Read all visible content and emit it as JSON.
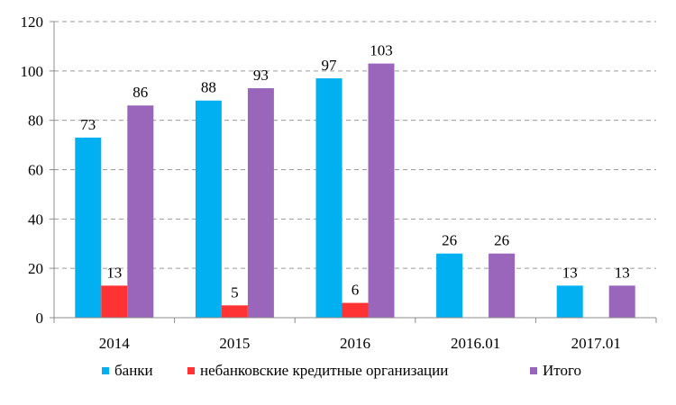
{
  "chart_data": {
    "type": "bar",
    "categories": [
      "2014",
      "2015",
      "2016",
      "2016.01",
      "2017.01"
    ],
    "series": [
      {
        "name": "банки",
        "color": "#00b0f0",
        "values": [
          73,
          88,
          97,
          26,
          13
        ]
      },
      {
        "name": "небанковские кредитные организации",
        "color": "#ff3333",
        "values": [
          13,
          5,
          6,
          null,
          null
        ]
      },
      {
        "name": "Итого",
        "color": "#9966bb",
        "values": [
          86,
          93,
          103,
          26,
          13
        ]
      }
    ],
    "ylim": [
      0,
      120
    ],
    "yticks": [
      0,
      20,
      40,
      60,
      80,
      100,
      120
    ],
    "grid": "horizontal dashed",
    "legend": "bottom",
    "title": "",
    "xlabel": "",
    "ylabel": ""
  }
}
